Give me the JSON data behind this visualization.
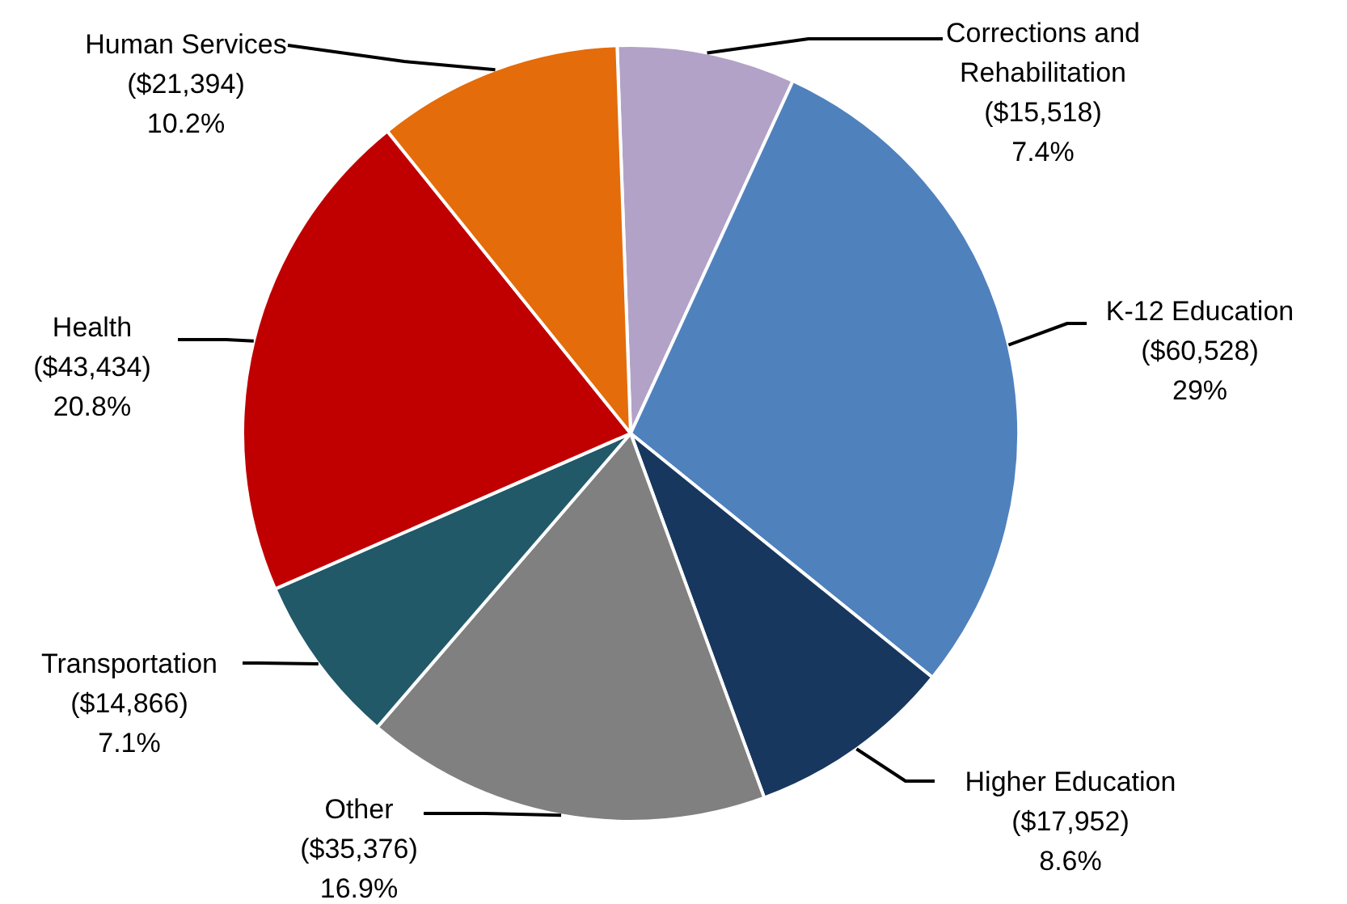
{
  "chart_data": {
    "type": "pie",
    "categories": [
      "Corrections and\nRehabilitation",
      "K-12 Education",
      "Higher Education",
      "Other",
      "Transportation",
      "Health",
      "Human Services"
    ],
    "values": [
      15518,
      60528,
      17952,
      35376,
      14866,
      43434,
      21394
    ],
    "value_labels": [
      "($15,518)\n7.4%",
      "($60,528)\n29%",
      "($17,952)\n8.6%",
      "($35,376)\n16.9%",
      "($14,866)\n7.1%",
      "($43,434)\n20.8%",
      "($21,394)\n10.2%"
    ],
    "colors": [
      "#b3a2c7",
      "#4f81bd",
      "#17375e",
      "#808080",
      "#215968",
      "#c00000",
      "#e46c0a"
    ],
    "legend": false
  }
}
